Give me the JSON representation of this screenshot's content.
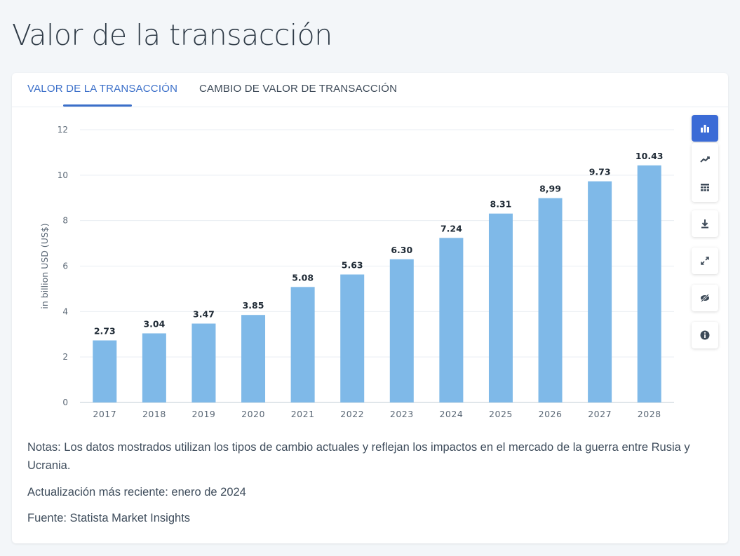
{
  "page": {
    "title": "Valor de la transacción"
  },
  "tabs": [
    {
      "label": "VALOR DE LA TRANSACCIÓN",
      "active": true
    },
    {
      "label": "CAMBIO DE VALOR DE TRANSACCIÓN",
      "active": false
    }
  ],
  "toolbar": {
    "icons": [
      "bar-chart-icon",
      "line-chart-icon",
      "table-icon",
      "download-icon",
      "expand-icon",
      "hide-icon",
      "info-icon"
    ],
    "active_color": "#3b6bd6"
  },
  "chart_data": {
    "type": "bar",
    "categories": [
      "2017",
      "2018",
      "2019",
      "2020",
      "2021",
      "2022",
      "2023",
      "2024",
      "2025",
      "2026",
      "2027",
      "2028"
    ],
    "values": [
      2.73,
      3.04,
      3.47,
      3.85,
      5.08,
      5.63,
      6.3,
      7.24,
      8.31,
      8.99,
      9.73,
      10.43
    ],
    "value_labels": [
      "2.73",
      "3.04",
      "3.47",
      "3.85",
      "5.08",
      "5.63",
      "6.30",
      "7.24",
      "8.31",
      "8,99",
      "9.73",
      "10.43"
    ],
    "ylabel": "in billion USD (US$)",
    "ylim": [
      0,
      12
    ],
    "yticks": [
      "0",
      "2",
      "4",
      "6",
      "8",
      "10",
      "12"
    ],
    "grid": true,
    "bar_color": "#7fb9e8"
  },
  "notes": {
    "text": "Notas: Los datos mostrados utilizan los tipos de cambio actuales y reflejan los impactos en el mercado de la guerra entre Rusia y Ucrania.",
    "updated": "Actualización más reciente: enero de 2024",
    "source": "Fuente: Statista Market Insights"
  }
}
